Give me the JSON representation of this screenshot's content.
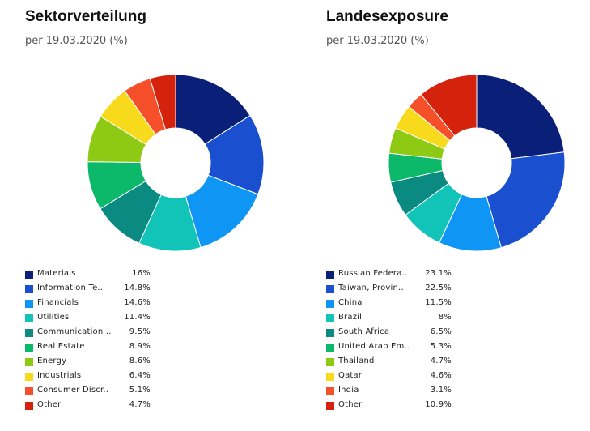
{
  "chart_data": [
    {
      "type": "pie",
      "title": "Sektorverteilung",
      "subtitle": "per 19.03.2020 (%)",
      "categories": [
        "Materials",
        "Information Te..",
        "Financials",
        "Utilities",
        "Communication ..",
        "Real Estate",
        "Energy",
        "Industrials",
        "Consumer Discr..",
        "Other"
      ],
      "values": [
        16,
        14.8,
        14.6,
        11.4,
        9.5,
        8.9,
        8.6,
        6.4,
        5.1,
        4.7
      ],
      "value_labels": [
        "16%",
        "14.8%",
        "14.6%",
        "11.4%",
        "9.5%",
        "8.9%",
        "8.6%",
        "6.4%",
        "5.1%",
        "4.7%"
      ],
      "colors": [
        "#0a1f78",
        "#1a4fd0",
        "#0f96f5",
        "#12c3b8",
        "#0a8a80",
        "#0cb86a",
        "#8ec913",
        "#f6da1b",
        "#f6502b",
        "#d4220c"
      ],
      "legend": "bottom-left",
      "donut": true
    },
    {
      "type": "pie",
      "title": "Landesexposure",
      "subtitle": "per 19.03.2020 (%)",
      "categories": [
        "Russian Federa..",
        "Taiwan, Provin..",
        "China",
        "Brazil",
        "South Africa",
        "United Arab Em..",
        "Thailand",
        "Qatar",
        "India",
        "Other"
      ],
      "values": [
        23.1,
        22.5,
        11.5,
        8,
        6.5,
        5.3,
        4.7,
        4.6,
        3.1,
        10.9
      ],
      "value_labels": [
        "23.1%",
        "22.5%",
        "11.5%",
        "8%",
        "6.5%",
        "5.3%",
        "4.7%",
        "4.6%",
        "3.1%",
        "10.9%"
      ],
      "colors": [
        "#0a1f78",
        "#1a4fd0",
        "#0f96f5",
        "#12c3b8",
        "#0a8a80",
        "#0cb86a",
        "#8ec913",
        "#f6da1b",
        "#f6502b",
        "#d4220c"
      ],
      "legend": "bottom-left",
      "donut": true
    }
  ]
}
